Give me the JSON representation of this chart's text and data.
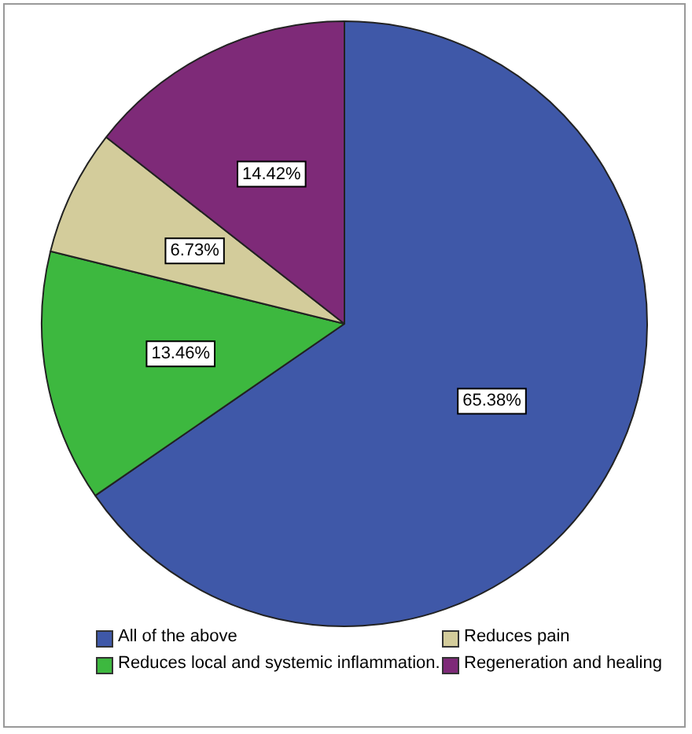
{
  "chart_data": {
    "type": "pie",
    "categories": [
      "All of the above",
      "Reduces local and systemic inflammation.",
      "Reduces pain",
      "Regeneration and healing"
    ],
    "values": [
      65.38,
      13.46,
      6.73,
      14.42
    ],
    "colors": [
      "#3f58a8",
      "#3db83f",
      "#d3cc9b",
      "#7e2a78"
    ],
    "value_labels": [
      "65.38%",
      "13.46%",
      "6.73%",
      "14.42%"
    ],
    "legend": "bottom"
  }
}
